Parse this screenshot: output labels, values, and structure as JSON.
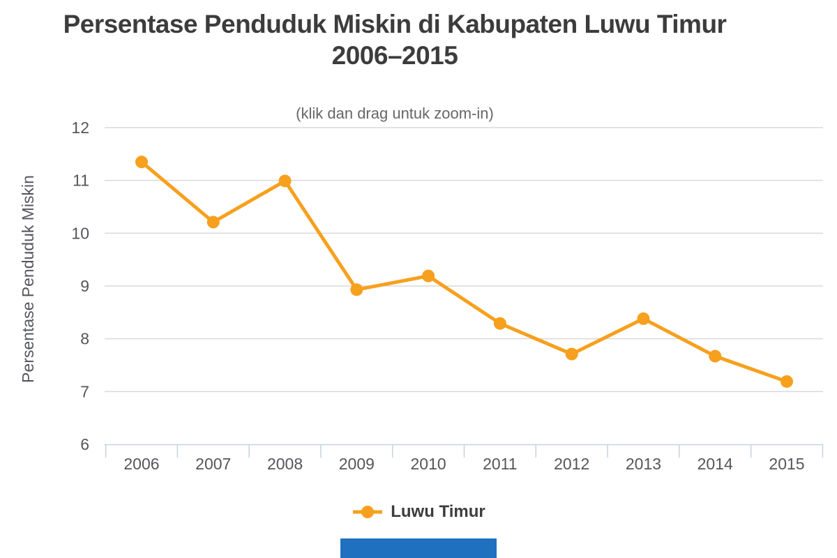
{
  "chart_data": {
    "type": "line",
    "title": "Persentase Penduduk Miskin di Kabupaten Luwu Timur 2006–2015",
    "title_lines": [
      "Persentase Penduduk Miskin di Kabupaten Luwu Timur",
      "2006–2015"
    ],
    "subtitle": "(klik dan drag untuk zoom-in)",
    "xlabel": "",
    "ylabel": "Persentase Penduduk Miskin",
    "categories": [
      "2006",
      "2007",
      "2008",
      "2009",
      "2010",
      "2011",
      "2012",
      "2013",
      "2014",
      "2015"
    ],
    "series": [
      {
        "name": "Luwu Timur",
        "values": [
          11.35,
          10.21,
          10.99,
          8.93,
          9.19,
          8.29,
          7.71,
          8.38,
          7.67,
          7.19
        ],
        "color": "#f7a01e"
      }
    ],
    "ylim": [
      6,
      12
    ],
    "yticks": [
      6,
      7,
      8,
      9,
      10,
      11,
      12
    ],
    "grid": true,
    "legend_position": "bottom"
  },
  "legend": {
    "items": [
      {
        "label": "Luwu Timur",
        "color": "#f7a01e"
      }
    ]
  },
  "colors": {
    "series_orange": "#f7a01e",
    "title_text": "#3c3c3c",
    "subtitle_text": "#666666",
    "tick_label": "#54565a",
    "gridline": "#d9d9d9",
    "axis_line": "#c3d2e1",
    "footer_bar": "#1f70bf",
    "background": "#ffffff"
  }
}
